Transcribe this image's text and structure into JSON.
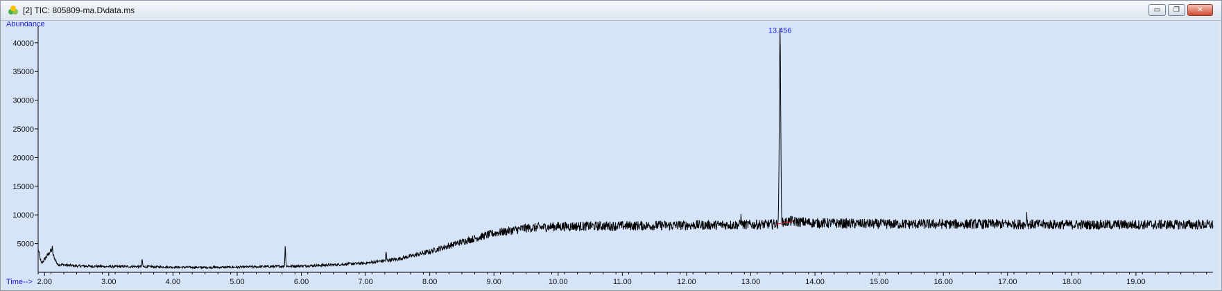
{
  "window": {
    "title": "[2] TIC: 805809-ma.D\\data.ms",
    "buttons": {
      "minimize": "▭",
      "restore": "❐",
      "close": "✕"
    }
  },
  "colors": {
    "plot_background": "#d6e4fa",
    "trace": "#000000",
    "axis_label": "#1d1de0",
    "baseline_marker": "#e02020"
  },
  "chart_data": {
    "type": "line",
    "ylabel": "Abundance",
    "xlabel": "Time-->",
    "xlim": [
      1.9,
      20.2
    ],
    "ylim": [
      0,
      43000
    ],
    "x_ticks": [
      "2.00",
      "3.00",
      "4.00",
      "5.00",
      "6.00",
      "7.00",
      "8.00",
      "9.00",
      "10.00",
      "11.00",
      "12.00",
      "13.00",
      "14.00",
      "15.00",
      "16.00",
      "17.00",
      "18.00",
      "19.00"
    ],
    "y_ticks": [
      "5000",
      "10000",
      "15000",
      "20000",
      "25000",
      "30000",
      "35000",
      "40000"
    ],
    "peak_label": {
      "text": "13.456",
      "x": 13.456,
      "y": 41500
    },
    "baseline_points": [
      [
        1.9,
        4000
      ],
      [
        1.95,
        1500
      ],
      [
        2.1,
        3800
      ],
      [
        2.2,
        1400
      ],
      [
        2.5,
        1100
      ],
      [
        3.0,
        1000
      ],
      [
        3.5,
        1000
      ],
      [
        4.0,
        900
      ],
      [
        4.5,
        850
      ],
      [
        5.0,
        900
      ],
      [
        5.5,
        1000
      ],
      [
        6.0,
        1100
      ],
      [
        6.5,
        1300
      ],
      [
        7.0,
        1600
      ],
      [
        7.5,
        2300
      ],
      [
        8.0,
        3600
      ],
      [
        8.5,
        5300
      ],
      [
        9.0,
        6800
      ],
      [
        9.5,
        7700
      ],
      [
        10.0,
        8000
      ],
      [
        11.0,
        8100
      ],
      [
        12.0,
        8200
      ],
      [
        13.0,
        8300
      ],
      [
        13.4,
        8400
      ],
      [
        13.6,
        8900
      ],
      [
        14.0,
        8600
      ],
      [
        15.0,
        8400
      ],
      [
        16.0,
        8400
      ],
      [
        17.0,
        8400
      ],
      [
        18.0,
        8300
      ],
      [
        19.0,
        8300
      ],
      [
        20.2,
        8300
      ]
    ],
    "spikes": [
      {
        "x": 2.12,
        "y": 4300
      },
      {
        "x": 3.52,
        "y": 2200
      },
      {
        "x": 5.75,
        "y": 4600
      },
      {
        "x": 7.32,
        "y": 3500
      },
      {
        "x": 12.85,
        "y": 9900
      },
      {
        "x": 17.3,
        "y": 10100
      }
    ],
    "main_peak": {
      "x": 13.456,
      "y": 41800,
      "width": 0.03
    }
  }
}
